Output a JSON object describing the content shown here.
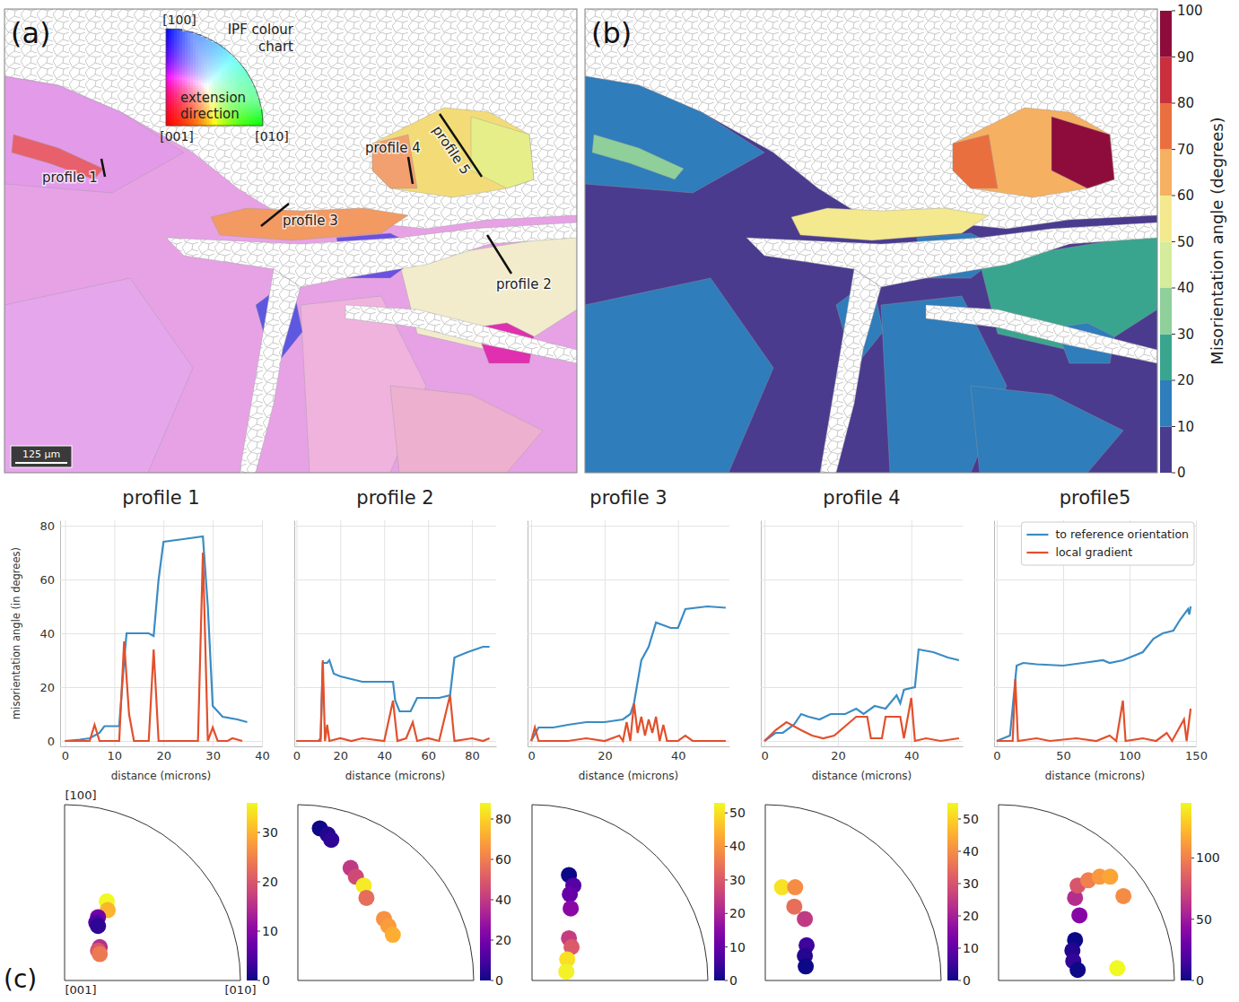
{
  "chart_data": [
    {
      "type": "map",
      "panel_label": "(a)",
      "legend_title": "IPF colour chart",
      "legend_labels": [
        "[100]",
        "[001]",
        "[010]"
      ],
      "legend_annotation": "extension direction",
      "profile_labels": [
        "profile 1",
        "profile 2",
        "profile 3",
        "profile 4",
        "profile 5"
      ],
      "scale_bar": "125 μm"
    },
    {
      "type": "map",
      "panel_label": "(b)",
      "colorbar": {
        "label": "Misorientation angle (degrees)",
        "range": [
          0,
          100
        ],
        "ticks": [
          0,
          10,
          20,
          30,
          40,
          50,
          60,
          70,
          80,
          90,
          100
        ],
        "colors": [
          "#4a3b8f",
          "#2f7dbb",
          "#3aa58f",
          "#8fcf9a",
          "#d4ec9c",
          "#f4e98f",
          "#f5b062",
          "#ea6f3f",
          "#c92f3d",
          "#8e0c3b"
        ]
      }
    },
    {
      "type": "line",
      "title": "profile 1",
      "xlabel": "distance (microns)",
      "ylabel": "misorientation angle (in degrees)",
      "xlim": [
        -1,
        40
      ],
      "xticks": [
        0,
        10,
        20,
        30,
        40
      ],
      "ylim": [
        -2,
        82
      ],
      "yticks": [
        0,
        20,
        40,
        60,
        80
      ],
      "grid": true,
      "series": [
        {
          "color": "#3a8cc4",
          "x": [
            0,
            3,
            5,
            7,
            8,
            11,
            12,
            12.5,
            15,
            17,
            18,
            19,
            20,
            24,
            28,
            29,
            30,
            32,
            35,
            37
          ],
          "values": [
            0,
            0.5,
            1,
            3,
            5.5,
            5.5,
            30,
            40,
            40,
            40,
            39,
            60,
            74,
            75,
            76,
            50,
            13,
            9,
            8,
            7
          ]
        },
        {
          "color": "#e2502d",
          "x": [
            0,
            5,
            6,
            7,
            10,
            11,
            12,
            13,
            14,
            17,
            18,
            19,
            21,
            27,
            28,
            29,
            30,
            31,
            33,
            34,
            36
          ],
          "values": [
            0,
            0,
            6,
            0,
            0,
            0,
            37,
            10,
            0,
            0,
            34,
            0,
            0,
            0,
            70,
            0,
            5,
            0,
            0,
            1,
            0
          ]
        }
      ]
    },
    {
      "type": "line",
      "title": "profile 2",
      "xlabel": "distance (microns)",
      "xlim": [
        -1,
        91
      ],
      "xticks": [
        0,
        20,
        40,
        60,
        80
      ],
      "ylim": [
        -2,
        82
      ],
      "yticks": [
        0,
        20,
        40,
        60,
        80
      ],
      "grid": true,
      "tick_labels": "x",
      "series": [
        {
          "color": "#3a8cc4",
          "x": [
            0,
            10,
            11,
            12,
            14,
            15,
            17,
            20,
            25,
            30,
            44,
            45,
            47,
            52,
            55,
            65,
            70,
            71,
            72,
            78,
            85,
            88
          ],
          "values": [
            0,
            0,
            1,
            29,
            29,
            30,
            25,
            24,
            23,
            22,
            22,
            15,
            11,
            11,
            16,
            16,
            17,
            24,
            31,
            33,
            35,
            35
          ]
        },
        {
          "color": "#e2502d",
          "x": [
            0,
            11,
            12,
            13,
            14,
            15,
            20,
            25,
            30,
            40,
            44,
            46,
            50,
            53,
            55,
            60,
            65,
            70,
            72,
            80,
            85,
            88
          ],
          "values": [
            0,
            0,
            30,
            0,
            6,
            0,
            1,
            0,
            1,
            0,
            15,
            0,
            1,
            7,
            0,
            1,
            0,
            17,
            0,
            1,
            0,
            1
          ]
        }
      ]
    },
    {
      "type": "line",
      "title": "profile 3",
      "xlabel": "distance (microns)",
      "xlim": [
        -1,
        54
      ],
      "xticks": [
        0,
        20,
        40
      ],
      "ylim": [
        -2,
        82
      ],
      "yticks": [
        0,
        20,
        40,
        60,
        80
      ],
      "grid": true,
      "tick_labels": "x",
      "series": [
        {
          "color": "#3a8cc4",
          "x": [
            0,
            2,
            6,
            10,
            15,
            20,
            25,
            27,
            28,
            29,
            30,
            32,
            34,
            38,
            40,
            42,
            48,
            53
          ],
          "values": [
            0,
            5,
            5,
            6,
            7,
            7,
            8,
            10,
            14,
            22,
            30,
            35,
            44,
            42,
            42,
            49,
            50,
            49.5
          ]
        },
        {
          "color": "#e2502d",
          "x": [
            0,
            1,
            2,
            10,
            15,
            20,
            24,
            25,
            26,
            27,
            28,
            29,
            30,
            31,
            32,
            33,
            34,
            35,
            36,
            37,
            40,
            42,
            44,
            53
          ],
          "values": [
            0,
            5,
            0,
            0,
            1,
            0,
            2,
            0,
            7,
            0,
            14,
            3,
            9,
            2,
            8,
            3,
            9,
            0,
            6,
            0,
            0,
            2,
            0,
            0
          ]
        }
      ]
    },
    {
      "type": "line",
      "title": "profile 4",
      "xlabel": "distance (microns)",
      "xlim": [
        -1,
        54
      ],
      "xticks": [
        0,
        20,
        40
      ],
      "ylim": [
        -2,
        82
      ],
      "yticks": [
        0,
        20,
        40,
        60,
        80
      ],
      "grid": true,
      "tick_labels": "x",
      "series": [
        {
          "color": "#3a8cc4",
          "x": [
            0,
            3,
            5,
            8,
            10,
            12,
            15,
            18,
            22,
            25,
            27,
            30,
            33,
            36,
            37,
            38,
            41,
            42,
            46,
            50,
            53
          ],
          "values": [
            0,
            3,
            3,
            6,
            10,
            9,
            8,
            10,
            10,
            12,
            10,
            13,
            12,
            17,
            14,
            19,
            20,
            34,
            33,
            31,
            30
          ]
        },
        {
          "color": "#e2502d",
          "x": [
            0,
            3,
            6,
            10,
            13,
            16,
            19,
            25,
            28,
            29,
            32,
            33,
            37,
            38,
            40,
            41,
            44,
            48,
            53
          ],
          "values": [
            0,
            4,
            7,
            4,
            2,
            1,
            2,
            9,
            9,
            1,
            1,
            9,
            9,
            1,
            16,
            0,
            1,
            0,
            1
          ]
        }
      ]
    },
    {
      "type": "line",
      "title": "profile5",
      "xlabel": "distance (microns)",
      "xlim": [
        -2,
        150
      ],
      "xticks": [
        0,
        50,
        100,
        150
      ],
      "ylim": [
        -2,
        82
      ],
      "yticks": [
        0,
        20,
        40,
        60,
        80
      ],
      "grid": true,
      "tick_labels": "x",
      "legend": "upper right",
      "series": [
        {
          "name": "to reference orientation",
          "color": "#3a8cc4",
          "x": [
            0,
            10,
            15,
            20,
            30,
            50,
            65,
            80,
            85,
            95,
            100,
            110,
            118,
            125,
            133,
            138,
            144,
            145,
            146
          ],
          "values": [
            0,
            2,
            28,
            29,
            28.5,
            28,
            29,
            30,
            29,
            30,
            31,
            33,
            38,
            40,
            41,
            45,
            49,
            47,
            50
          ]
        },
        {
          "name": "local gradient",
          "color": "#e2502d",
          "x": [
            0,
            12,
            14,
            16,
            30,
            40,
            60,
            75,
            85,
            90,
            95,
            97,
            110,
            120,
            128,
            132,
            141,
            143,
            146
          ],
          "values": [
            0,
            0,
            23,
            0,
            1,
            0,
            1,
            0,
            2,
            0,
            15,
            0,
            1,
            0,
            3,
            0,
            8,
            0,
            12
          ]
        }
      ]
    },
    {
      "type": "scatter",
      "panel_label": "(c)",
      "corner_labels": [
        "[100]",
        "[001]",
        "[010]"
      ],
      "xlim": [
        0,
        1
      ],
      "ylim": [
        0,
        1
      ],
      "tick_labels": false,
      "x": [
        0.24,
        0.245,
        0.19,
        0.18,
        0.19,
        0.2,
        0.19,
        0.2
      ],
      "values": [
        0.45,
        0.4,
        0.36,
        0.33,
        0.31,
        0.19,
        0.17,
        0.15
      ],
      "point_values": [
        36,
        30,
        8,
        5,
        2,
        15,
        20,
        24
      ],
      "colorbar": {
        "range": [
          0,
          36
        ],
        "ticks": [
          0,
          10,
          20,
          30
        ]
      }
    },
    {
      "type": "scatter",
      "xlim": [
        0,
        1
      ],
      "ylim": [
        0,
        1
      ],
      "tick_labels": false,
      "x": [
        0.125,
        0.17,
        0.19,
        0.3,
        0.33,
        0.375,
        0.39,
        0.49,
        0.515,
        0.54
      ],
      "values": [
        0.865,
        0.83,
        0.8,
        0.64,
        0.59,
        0.54,
        0.47,
        0.35,
        0.31,
        0.26
      ],
      "point_values": [
        0,
        3,
        5,
        40,
        45,
        85,
        55,
        65,
        68,
        72
      ],
      "colorbar": {
        "range": [
          0,
          88
        ],
        "ticks": [
          0,
          20,
          40,
          60,
          80
        ]
      }
    },
    {
      "type": "scatter",
      "xlim": [
        0,
        1
      ],
      "ylim": [
        0,
        1
      ],
      "tick_labels": false,
      "x": [
        0.21,
        0.235,
        0.215,
        0.22,
        0.21,
        0.225,
        0.2,
        0.195
      ],
      "values": [
        0.6,
        0.54,
        0.49,
        0.41,
        0.24,
        0.19,
        0.12,
        0.05
      ],
      "point_values": [
        0,
        8,
        10,
        15,
        25,
        30,
        50,
        52
      ],
      "colorbar": {
        "range": [
          0,
          53
        ],
        "ticks": [
          0,
          10,
          20,
          30,
          40,
          50
        ]
      }
    },
    {
      "type": "scatter",
      "xlim": [
        0,
        1
      ],
      "ylim": [
        0,
        1
      ],
      "tick_labels": false,
      "x": [
        0.095,
        0.17,
        0.165,
        0.225,
        0.235,
        0.225,
        0.23
      ],
      "values": [
        0.53,
        0.53,
        0.42,
        0.35,
        0.2,
        0.14,
        0.08
      ],
      "point_values": [
        52,
        40,
        35,
        25,
        5,
        2,
        0
      ],
      "colorbar": {
        "range": [
          0,
          55
        ],
        "ticks": [
          0,
          10,
          20,
          30,
          40,
          50
        ]
      }
    },
    {
      "type": "scatter",
      "xlim": [
        0,
        1
      ],
      "ylim": [
        0,
        1
      ],
      "tick_labels": false,
      "x": [
        0.435,
        0.42,
        0.425,
        0.45,
        0.46,
        0.435,
        0.45,
        0.51,
        0.575,
        0.635,
        0.71,
        0.675
      ],
      "values": [
        0.23,
        0.17,
        0.11,
        0.06,
        0.37,
        0.47,
        0.54,
        0.57,
        0.59,
        0.59,
        0.48,
        0.07
      ],
      "point_values": [
        0,
        5,
        10,
        0,
        40,
        60,
        80,
        100,
        110,
        115,
        105,
        145
      ],
      "colorbar": {
        "range": [
          0,
          145
        ],
        "ticks": [
          0,
          50,
          100
        ]
      }
    }
  ]
}
